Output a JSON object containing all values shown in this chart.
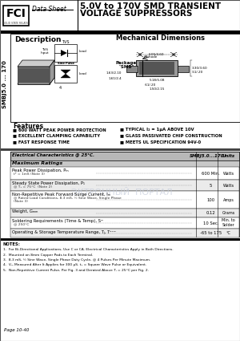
{
  "title_line1": "5.0V to 170V SMD TRANSIENT",
  "title_line2": "VOLTAGE SUPPRESSORS",
  "part_number": "SMBJ5.0 ... 170",
  "vertical_label": "SMBJ5.0 ... 170",
  "logo_text": "FCI",
  "datasheet_text": "Data Sheet",
  "description_title": "Description",
  "mech_dim_title": "Mechanical Dimensions",
  "package_label": "Package\n\"SMB\"",
  "features_title": "Features",
  "features_left": [
    "■ 600 WATT PEAK POWER PROTECTION",
    "■ EXCELLENT CLAMPING CAPABILITY",
    "■ FAST RESPONSE TIME"
  ],
  "features_right": [
    "■ TYPICAL I₂ = 1μA ABOVE 10V",
    "■ GLASS PASSIVATED CHIP CONSTRUCTION",
    "■ MEETS UL SPECIFICATION 94V-0"
  ],
  "table_header_col1": "Electrical Characteristics @ 25°C.",
  "table_header_col2": "SMBJ5.0...170",
  "table_header_col3": "Units",
  "max_ratings_header": "Maximum Ratings",
  "table_rows": [
    {
      "param": "Peak Power Dissipation, Pₘ",
      "sub": "tᵖ = 1mS (Note 3)",
      "value": "600 Min.",
      "unit": "Watts"
    },
    {
      "param": "Steady State Power Dissipation, P₁",
      "sub": "@ T₁ = 75°C  (Note 2)",
      "value": "5",
      "unit": "Watts"
    },
    {
      "param": "Non-Repetitive Peak Forward Surge Current, Iₘ",
      "sub": "@ Rated Load Conditions, 8.3 mS, ½ Sine Wave, Single Phase\n(Note 3)",
      "value": "100",
      "unit": "Amps"
    },
    {
      "param": "Weight, Gₘₘ",
      "sub": "",
      "value": "0.12",
      "unit": "Grams"
    },
    {
      "param": "Soldering Requirements (Time & Temp), Sᵐ",
      "sub": "@ 250°C",
      "value": "10 Sec.",
      "unit": "Min. to\nSolder"
    },
    {
      "param": "Operating & Storage Temperature Range, Tⱼ, Tᵒᵀᵂ",
      "sub": "",
      "value": "-65 to 175",
      "unit": "°C"
    }
  ],
  "notes_title": "NOTES:",
  "notes": [
    "1.  For Bi-Directional Applications, Use C or CA. Electrical Characteristics Apply in Both Directions.",
    "2.  Mounted on 8mm Copper Pads to Each Terminal.",
    "3.  8.3 mS, ½ Sine Wave, Single Phase Duty Cycle, @ 4 Pulses Per Minute Maximum.",
    "4.  Vₘ Measured After It Applies for 300 μS. t₁ = Square Wave Pulse or Equivalent.",
    "5.  Non-Repetitive Current Pulse, Per Fig. 3 and Derated Above Tⱼ = 25°C per Fig. 2."
  ],
  "page_number": "Page 10-40",
  "bg_color": "#ffffff",
  "table_header_bg": "#b8b8b8",
  "max_rating_bg": "#c8c8c8",
  "row_alt_bg": "#ebebeb",
  "row_bg": "#ffffff",
  "watermark_color": "#c5ccdb",
  "watermark_text": "ЭКТРОННЫЙ  ПОРТАЛ"
}
